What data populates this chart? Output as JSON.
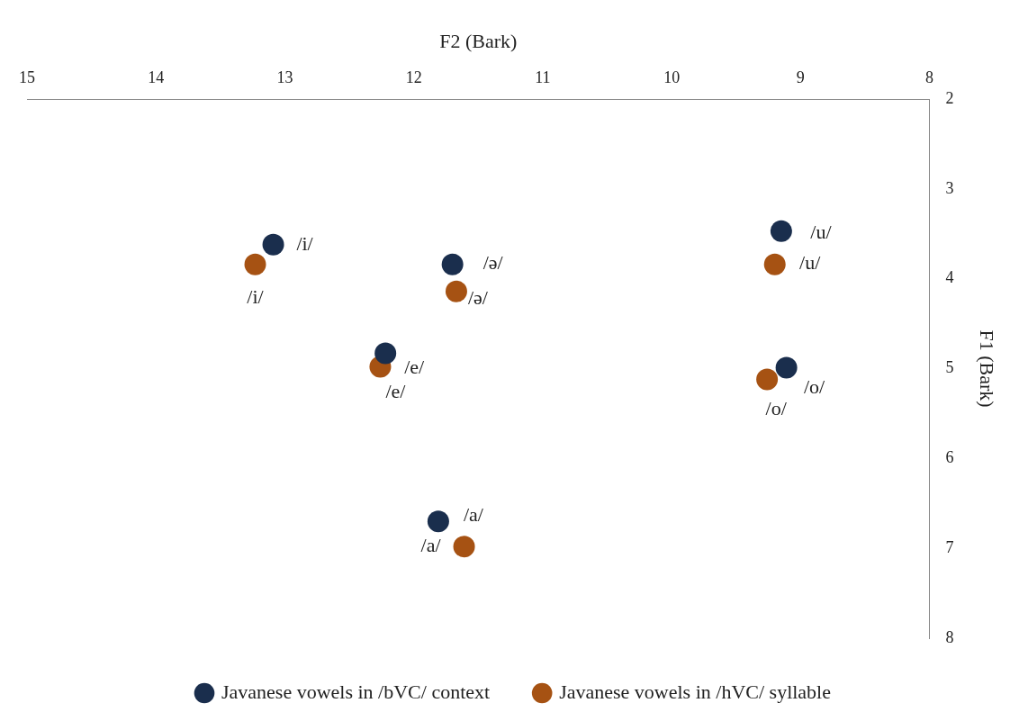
{
  "chart_data": {
    "type": "scatter",
    "xlabel": "F2 (Bark)",
    "ylabel": "F1 (Bark)",
    "xlim": [
      15,
      8
    ],
    "xticks": [
      15,
      14,
      13,
      12,
      11,
      10,
      9,
      8
    ],
    "ylim": [
      8,
      2
    ],
    "yticks": [
      2,
      3,
      4,
      5,
      6,
      7,
      8
    ],
    "legend": "bottom",
    "marker": "circle",
    "series": [
      {
        "name": "Javanese vowels in /bVC/ context",
        "color": "#1a2e4d",
        "x": [
          13.09,
          11.7,
          9.15,
          12.22,
          9.11,
          11.81
        ],
        "values": [
          3.62,
          3.84,
          3.47,
          4.83,
          4.99,
          6.7
        ]
      },
      {
        "name": "Javanese vowels in /hVC/ syllable",
        "color": "#a65213",
        "x": [
          13.23,
          11.67,
          9.2,
          12.26,
          9.26,
          11.61
        ],
        "values": [
          3.84,
          4.14,
          3.84,
          4.98,
          5.12,
          6.98
        ]
      }
    ],
    "annotations": [
      {
        "text": "/i/",
        "x": 13.09,
        "y": 3.62
      },
      {
        "text": "/i/",
        "x": 13.23,
        "y": 3.84
      },
      {
        "text": "/ə/",
        "x": 11.7,
        "y": 3.84
      },
      {
        "text": "/ə/",
        "x": 11.67,
        "y": 4.14
      },
      {
        "text": "/u/",
        "x": 9.15,
        "y": 3.47
      },
      {
        "text": "/u/",
        "x": 9.2,
        "y": 3.84
      },
      {
        "text": "/e/",
        "x": 12.22,
        "y": 4.83
      },
      {
        "text": "/e/",
        "x": 12.26,
        "y": 4.98
      },
      {
        "text": "/o/",
        "x": 9.11,
        "y": 4.99
      },
      {
        "text": "/o/",
        "x": 9.26,
        "y": 5.12
      },
      {
        "text": "/a/",
        "x": 11.81,
        "y": 6.7
      },
      {
        "text": "/a/",
        "x": 11.61,
        "y": 6.98
      }
    ]
  }
}
